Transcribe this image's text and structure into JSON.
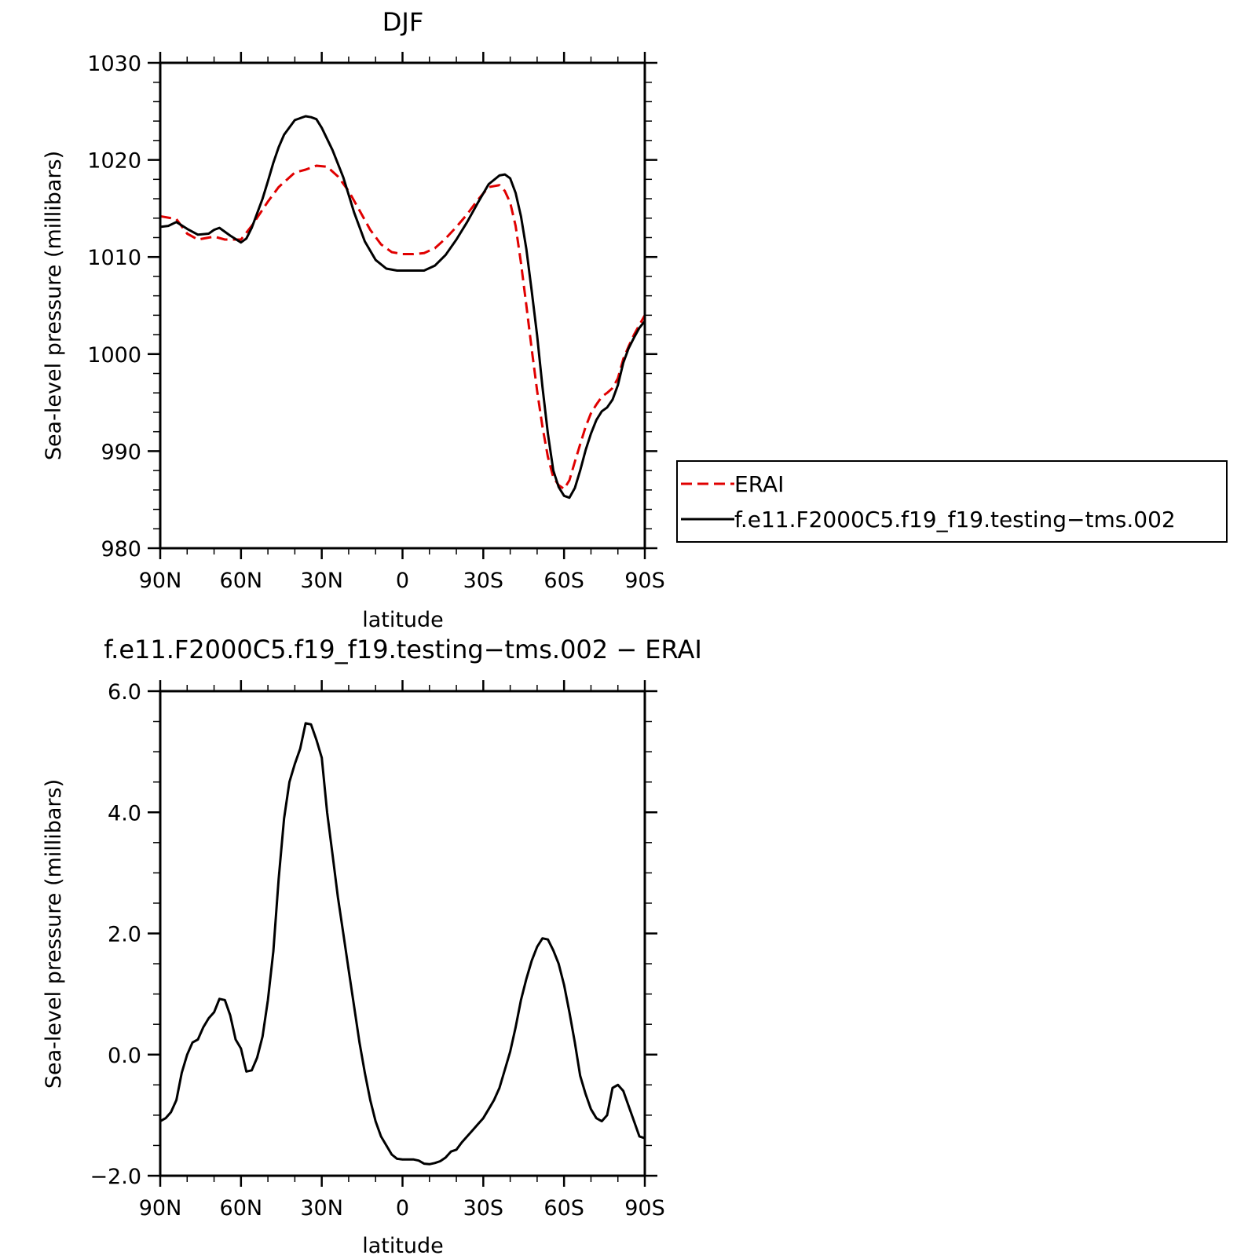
{
  "colors": {
    "erai": "#e00000",
    "model": "#000000",
    "axes": "#000000",
    "background": "#ffffff"
  },
  "chart_data": [
    {
      "type": "line",
      "title": "DJF",
      "xlabel": "latitude",
      "ylabel": "Sea-level pressure (millibars)",
      "xlim": [
        90,
        -90
      ],
      "ylim": [
        980,
        1030
      ],
      "x_ticks": [
        90,
        60,
        30,
        0,
        -30,
        -60,
        -90
      ],
      "x_tick_labels": [
        "90N",
        "60N",
        "30N",
        "0",
        "30S",
        "60S",
        "90S"
      ],
      "y_ticks": [
        980,
        990,
        1000,
        1010,
        1020,
        1030
      ],
      "y_tick_labels": [
        "980",
        "990",
        "1000",
        "1010",
        "1020",
        "1030"
      ],
      "grid": false,
      "legend": {
        "placement": "outside-right"
      },
      "series": [
        {
          "name": "ERAI",
          "color": "#e00000",
          "style": "dashed",
          "x": [
            90,
            84,
            80,
            76,
            70,
            66,
            60,
            56,
            50,
            46,
            40,
            36,
            32,
            28,
            24,
            20,
            16,
            12,
            8,
            4,
            0,
            -4,
            -8,
            -12,
            -16,
            -20,
            -24,
            -28,
            -32,
            -36,
            -38,
            -40,
            -42,
            -44,
            -46,
            -48,
            -50,
            -52,
            -54,
            -56,
            -58,
            -60,
            -62,
            -64,
            -66,
            -68,
            -70,
            -72,
            -74,
            -76,
            -78,
            -80,
            -82,
            -84,
            -86,
            -88,
            -90
          ],
          "y": [
            1014.2,
            1013.9,
            1012.4,
            1011.8,
            1012.1,
            1011.8,
            1011.8,
            1013.2,
            1015.7,
            1017.2,
            1018.7,
            1019.0,
            1019.4,
            1019.3,
            1018.3,
            1016.8,
            1014.8,
            1012.8,
            1011.3,
            1010.5,
            1010.3,
            1010.3,
            1010.4,
            1010.9,
            1011.9,
            1013.1,
            1014.4,
            1015.9,
            1017.2,
            1017.4,
            1016.8,
            1015.6,
            1013.2,
            1009.4,
            1005.0,
            1000.5,
            996.2,
            992.5,
            989.4,
            987.3,
            986.5,
            986.1,
            987.0,
            988.9,
            990.7,
            992.5,
            993.9,
            994.8,
            995.6,
            996.0,
            996.5,
            997.5,
            999.5,
            1000.8,
            1002.0,
            1003.0,
            1004.0
          ]
        },
        {
          "name": "f.e11.F2000C5.f19_f19.testing−tms.002",
          "color": "#000000",
          "style": "solid",
          "x": [
            90,
            87,
            84,
            80,
            76,
            72,
            70,
            68,
            64,
            60,
            58,
            56,
            52,
            50,
            48,
            46,
            44,
            40,
            36,
            34,
            32,
            30,
            26,
            22,
            18,
            14,
            10,
            6,
            2,
            0,
            -2,
            -4,
            -8,
            -12,
            -16,
            -20,
            -24,
            -28,
            -32,
            -36,
            -38,
            -40,
            -42,
            -44,
            -46,
            -48,
            -50,
            -52,
            -54,
            -56,
            -58,
            -60,
            -62,
            -64,
            -66,
            -68,
            -70,
            -72,
            -74,
            -76,
            -78,
            -80,
            -82,
            -84,
            -86,
            -88,
            -90
          ],
          "y": [
            1013.1,
            1013.2,
            1013.6,
            1012.9,
            1012.3,
            1012.4,
            1012.8,
            1013.0,
            1012.2,
            1011.5,
            1011.9,
            1013.0,
            1016.0,
            1017.8,
            1019.7,
            1021.3,
            1022.6,
            1024.1,
            1024.5,
            1024.4,
            1024.2,
            1023.3,
            1021.0,
            1018.2,
            1014.6,
            1011.6,
            1009.7,
            1008.8,
            1008.6,
            1008.6,
            1008.6,
            1008.6,
            1008.6,
            1009.1,
            1010.2,
            1011.8,
            1013.6,
            1015.6,
            1017.5,
            1018.4,
            1018.5,
            1018.1,
            1016.6,
            1014.2,
            1010.8,
            1006.5,
            1001.9,
            996.6,
            991.8,
            988.0,
            986.3,
            985.4,
            985.2,
            986.2,
            988.0,
            990.1,
            991.8,
            993.2,
            994.1,
            994.5,
            995.3,
            996.8,
            999.1,
            1000.6,
            1001.7,
            1002.7,
            1003.4
          ]
        }
      ]
    },
    {
      "type": "line",
      "title": "f.e11.F2000C5.f19_f19.testing−tms.002 − ERAI",
      "xlabel": "latitude",
      "ylabel": "Sea-level pressure (millibars)",
      "xlim": [
        90,
        -90
      ],
      "ylim": [
        -2.0,
        6.0
      ],
      "x_ticks": [
        90,
        60,
        30,
        0,
        -30,
        -60,
        -90
      ],
      "x_tick_labels": [
        "90N",
        "60N",
        "30N",
        "0",
        "30S",
        "60S",
        "90S"
      ],
      "y_ticks": [
        -2.0,
        0.0,
        2.0,
        4.0,
        6.0
      ],
      "y_tick_labels": [
        "−2.0",
        "0.0",
        "2.0",
        "4.0",
        "6.0"
      ],
      "grid": false,
      "series": [
        {
          "color": "#000000",
          "style": "solid",
          "x": [
            90,
            88,
            86,
            84,
            82,
            80,
            78,
            76,
            74,
            72,
            70,
            68,
            66,
            64,
            62,
            60,
            58,
            56,
            54,
            52,
            50,
            48,
            46,
            44,
            42,
            40,
            38,
            36,
            34,
            32,
            30,
            28,
            26,
            24,
            22,
            20,
            18,
            16,
            14,
            12,
            10,
            8,
            6,
            4,
            2,
            0,
            -2,
            -4,
            -6,
            -8,
            -10,
            -12,
            -14,
            -16,
            -18,
            -20,
            -22,
            -24,
            -26,
            -28,
            -30,
            -32,
            -34,
            -36,
            -38,
            -40,
            -42,
            -44,
            -46,
            -48,
            -50,
            -52,
            -54,
            -56,
            -58,
            -60,
            -62,
            -64,
            -66,
            -68,
            -70,
            -72,
            -74,
            -76,
            -78,
            -80,
            -82,
            -84,
            -86,
            -88,
            -90
          ],
          "y": [
            -1.1,
            -1.05,
            -0.95,
            -0.75,
            -0.3,
            0.0,
            0.2,
            0.25,
            0.45,
            0.6,
            0.7,
            0.92,
            0.9,
            0.65,
            0.25,
            0.1,
            -0.28,
            -0.26,
            -0.05,
            0.3,
            0.9,
            1.7,
            2.9,
            3.9,
            4.5,
            4.8,
            5.05,
            5.47,
            5.45,
            5.2,
            4.9,
            4.0,
            3.3,
            2.6,
            2.0,
            1.4,
            0.8,
            0.2,
            -0.3,
            -0.75,
            -1.1,
            -1.35,
            -1.5,
            -1.65,
            -1.72,
            -1.73,
            -1.73,
            -1.73,
            -1.75,
            -1.8,
            -1.81,
            -1.79,
            -1.76,
            -1.7,
            -1.6,
            -1.57,
            -1.45,
            -1.35,
            -1.25,
            -1.15,
            -1.05,
            -0.9,
            -0.75,
            -0.55,
            -0.25,
            0.05,
            0.45,
            0.9,
            1.25,
            1.55,
            1.78,
            1.92,
            1.9,
            1.72,
            1.5,
            1.15,
            0.7,
            0.2,
            -0.35,
            -0.65,
            -0.9,
            -1.05,
            -1.1,
            -1.0,
            -0.55,
            -0.5,
            -0.6,
            -0.85,
            -1.1,
            -1.35,
            -1.38
          ]
        }
      ]
    }
  ]
}
